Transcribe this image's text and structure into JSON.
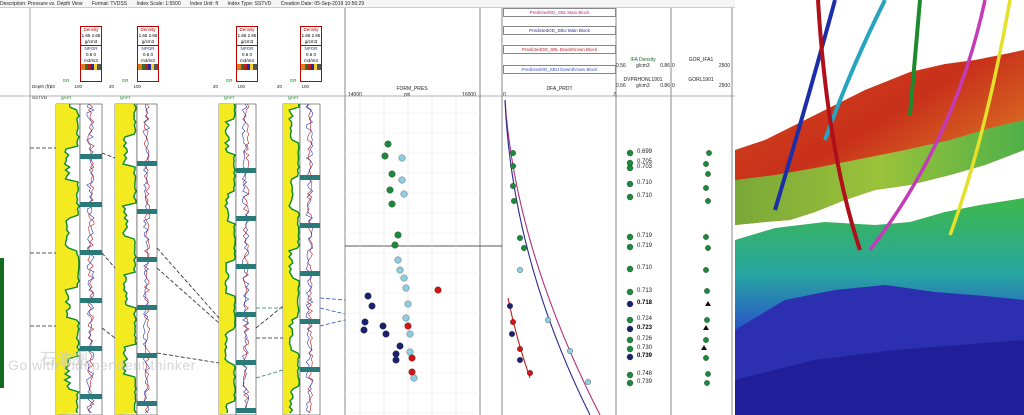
{
  "infobar": {
    "description": "Description: Pressure vs. Depth View",
    "format": "Format: TVDSS",
    "scale": "Index Scale: 1:5500",
    "unit": "Index Unit: ft",
    "type": "Index Type: SSTVD",
    "created": "Creation Date: 05-Sep-2019 10:56:29"
  },
  "depth_header": {
    "depth": "Depth (ft)",
    "sstvd": "SSTVD"
  },
  "tracks": [
    {
      "gr": "GR",
      "gr_min": "20",
      "gr_max": "100",
      "gr_unit": "gAPI",
      "density": "Density",
      "dmin": "1.65",
      "dmax": "2.65",
      "dunit": "g/cm3",
      "npor": "NPOR",
      "nmin": "0.6",
      "nmax": "0",
      "nunit": "m3/m3"
    },
    {
      "gr": "GR",
      "gr_min": "20",
      "gr_max": "100",
      "gr_unit": "gAPI",
      "density": "Density",
      "dmin": "1.65",
      "dmax": "2.65",
      "dunit": "g/cm3",
      "npor": "NPOR",
      "nmin": "0.6",
      "nmax": "0",
      "nunit": "m3/m3"
    },
    {
      "gr": "GR",
      "gr_min": "20",
      "gr_max": "100",
      "gr_unit": "gAPI",
      "density": "Density",
      "dmin": "1.65",
      "dmax": "2.65",
      "dunit": "g/cm3",
      "npor": "NPOR",
      "nmin": "0.6",
      "nmax": "0",
      "nunit": "m3/m3"
    },
    {
      "gr": "GR",
      "gr_min": "20",
      "gr_max": "100",
      "gr_unit": "gAPI",
      "density": "Density",
      "dmin": "1.65",
      "dmax": "2.65",
      "dunit": "g/cm3",
      "npor": "NPOR",
      "nmin": "0.6",
      "nmax": "0",
      "nunit": "m3/m3"
    }
  ],
  "form_pres": {
    "title": "FORM_PRES",
    "min": "14000",
    "max": "16000",
    "unit": "psi"
  },
  "dfa": {
    "title": "DFA_PRDT",
    "min": "0",
    "max": "2"
  },
  "predicted_blocks": [
    {
      "label": "PredictedOD_SBL Main Block",
      "color": "#b0307a"
    },
    {
      "label": "PredictedOD_SBU Main Block",
      "color": "#2a2a8a"
    },
    {
      "label": "PredictedOD_SBL Downthrown Block",
      "color": "#c0202a"
    },
    {
      "label": "PredictedOD_SBU Downthrown Block",
      "color": "#3355bb"
    }
  ],
  "ifa": {
    "title": "IFA Density",
    "min": "0.56",
    "max": "0.86",
    "unit": "g/cm3",
    "sub": "DVPRHONL1901",
    "sub_min": "0.56",
    "sub_max": "0.86",
    "sub_unit": "g/cm3"
  },
  "gor": {
    "title": "GOR_IFA1",
    "min": "0",
    "max": "2500",
    "sub": "GORL1901",
    "sub_min": "0",
    "sub_max": "2500"
  },
  "density_values": [
    {
      "v": "0.699",
      "bold": false
    },
    {
      "v": "0.705",
      "bold": false
    },
    {
      "v": "0.703",
      "bold": false
    },
    {
      "v": "0.710",
      "bold": false
    },
    {
      "v": "0.710",
      "bold": false
    },
    {
      "v": "0.719",
      "bold": false
    },
    {
      "v": "0.719",
      "bold": false
    },
    {
      "v": "0.710",
      "bold": false
    },
    {
      "v": "0.713",
      "bold": false
    },
    {
      "v": "0.718",
      "bold": true
    },
    {
      "v": "0.724",
      "bold": false
    },
    {
      "v": "0.723",
      "bold": true
    },
    {
      "v": "0.726",
      "bold": false
    },
    {
      "v": "0.730",
      "bold": false
    },
    {
      "v": "0.739",
      "bold": true
    },
    {
      "v": "0.748",
      "bold": false
    },
    {
      "v": "0.739",
      "bold": false
    }
  ],
  "watermark": {
    "cn": "石油圈",
    "en": "Go with independent thinker"
  },
  "colors": {
    "gr_fill": "#f2ea14",
    "gr_curve": "#0b8a1e",
    "teal": "#2b7a7a",
    "green_pt": "#1c8a3a",
    "cyan_pt": "#8ecde0",
    "navy_pt": "#1a2270",
    "red_pt": "#d01515"
  }
}
